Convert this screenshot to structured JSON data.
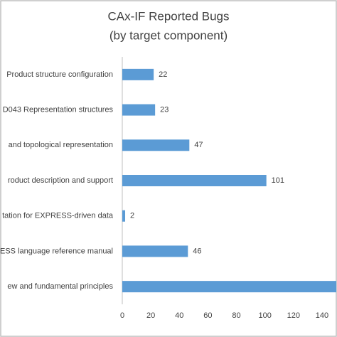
{
  "chart_data": {
    "type": "bar",
    "orientation": "horizontal",
    "title": "CAx-IF Reported Bugs",
    "subtitle": "(by target component)",
    "categories": [
      "Product structure configuration",
      "D043 Representation structures",
      "and topological representation",
      "roduct description and support",
      "tation for EXPRESS-driven data",
      "ESS language reference manual",
      "ew and fundamental principles"
    ],
    "values": [
      22,
      23,
      47,
      101,
      2,
      46,
      150
    ],
    "color": "#5b9bd5",
    "xlim": [
      0,
      150
    ],
    "xticks": [
      0,
      20,
      40,
      60,
      80,
      100,
      120,
      140
    ],
    "grid": false
  }
}
